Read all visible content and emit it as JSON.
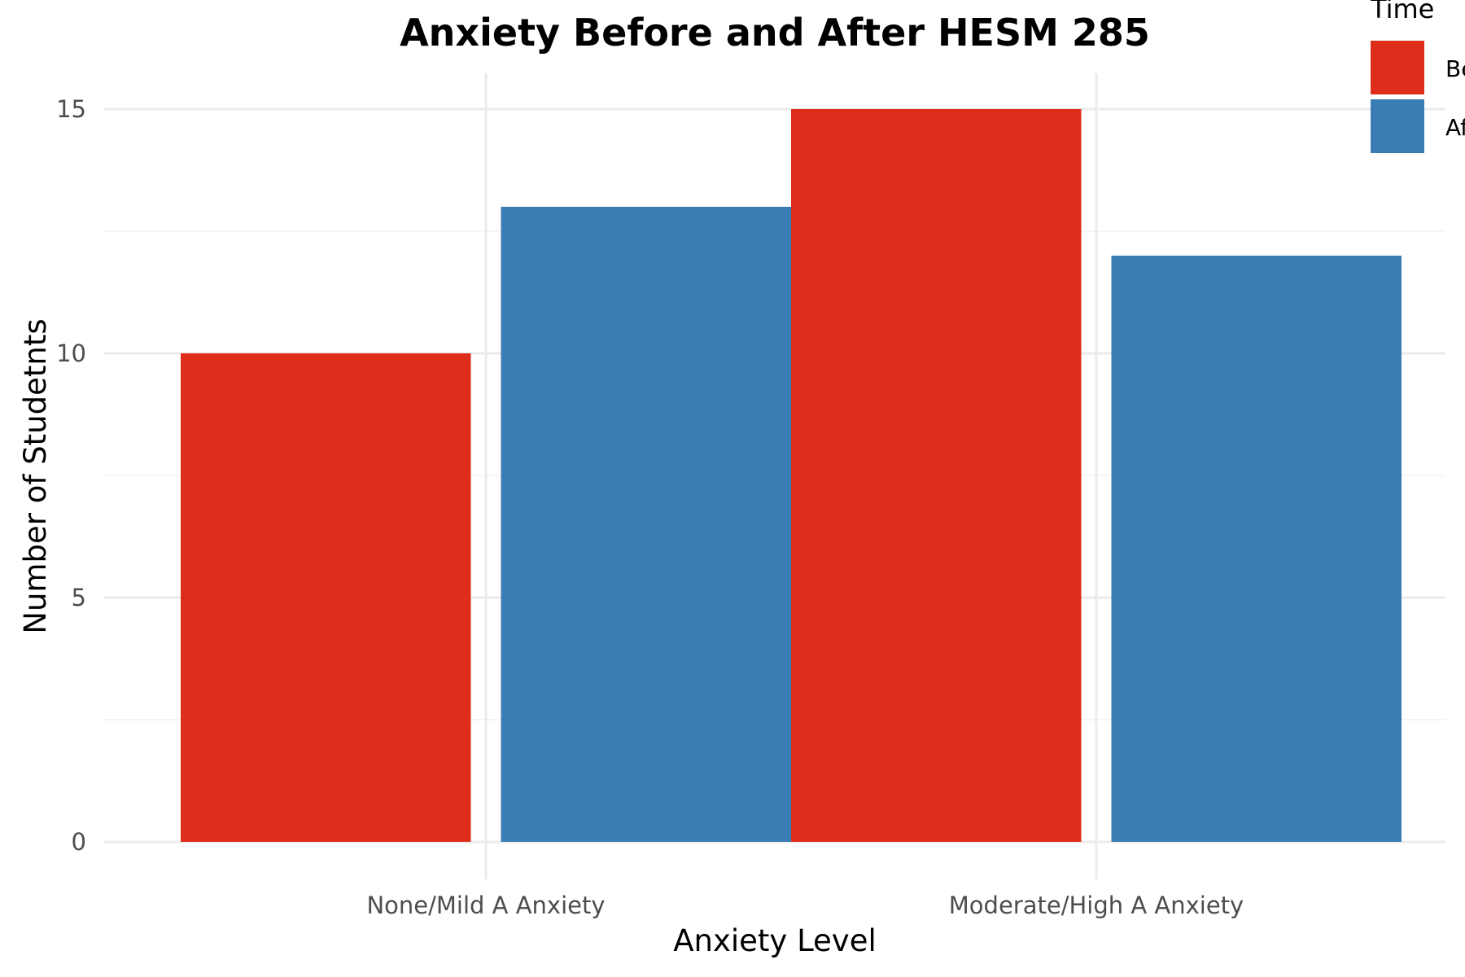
{
  "chart_data": {
    "type": "bar",
    "title": "Anxiety Before and After HESM 285",
    "xlabel": "Anxiety Level",
    "ylabel": "Number of Studetnts",
    "categories": [
      "None/Mild A Anxiety",
      "Moderate/High A Anxiety"
    ],
    "series": [
      {
        "name": "Before",
        "values": [
          10,
          15
        ],
        "color": "#DE2D1B"
      },
      {
        "name": "After",
        "values": [
          13,
          12
        ],
        "color": "#3A7DB4"
      }
    ],
    "ylim": [
      0,
      15
    ],
    "yticks": [
      0,
      5,
      10,
      15
    ],
    "grid": true,
    "legend": {
      "title": "Time",
      "position": "top-right"
    }
  }
}
